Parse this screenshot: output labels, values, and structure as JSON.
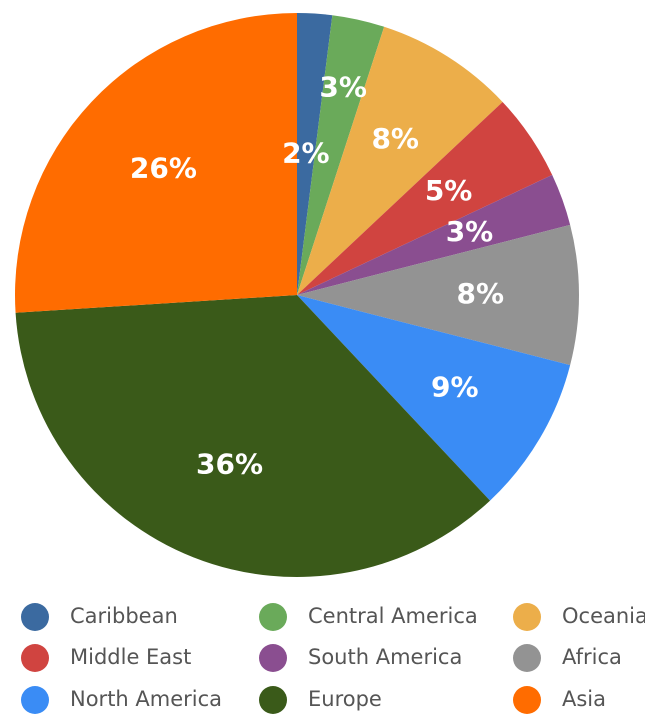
{
  "chart_data": {
    "type": "pie",
    "categories": [
      "Caribbean",
      "Central America",
      "Oceania",
      "Middle East",
      "South America",
      "Africa",
      "North America",
      "Europe",
      "Asia"
    ],
    "values": [
      2,
      3,
      8,
      5,
      3,
      8,
      9,
      36,
      26
    ],
    "value_labels": [
      "2%",
      "3%",
      "8%",
      "5%",
      "3%",
      "8%",
      "9%",
      "36%",
      "26%"
    ],
    "colors": [
      "#3b6aa0",
      "#6aaa5a",
      "#ecae4a",
      "#d04440",
      "#8a4e90",
      "#939393",
      "#3a8cf5",
      "#3a5a19",
      "#ff6c00"
    ]
  }
}
